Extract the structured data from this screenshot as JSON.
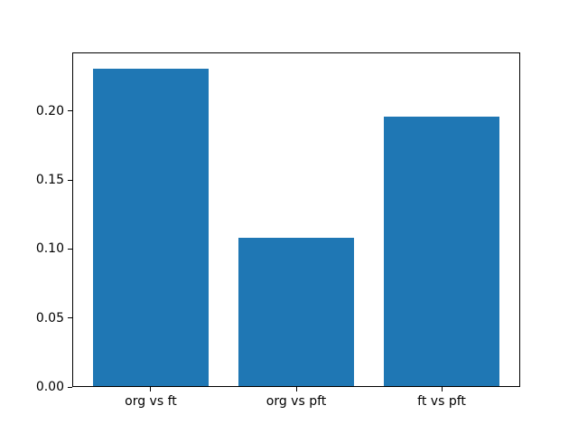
{
  "chart_data": {
    "type": "bar",
    "categories": [
      "org vs ft",
      "org vs pft",
      "ft vs pft"
    ],
    "values": [
      0.231,
      0.108,
      0.196
    ],
    "title": "",
    "xlabel": "",
    "ylabel": "",
    "ylim": [
      0,
      0.2425
    ],
    "yticks": [
      0.0,
      0.05,
      0.1,
      0.15,
      0.2
    ],
    "ytick_labels": [
      "0.00",
      "0.05",
      "0.10",
      "0.15",
      "0.20"
    ],
    "bar_color": "#1f77b4",
    "axis_color": "#000000",
    "background_color": "#ffffff",
    "grid": false,
    "legend": false,
    "bar_width_fraction": 0.8
  }
}
